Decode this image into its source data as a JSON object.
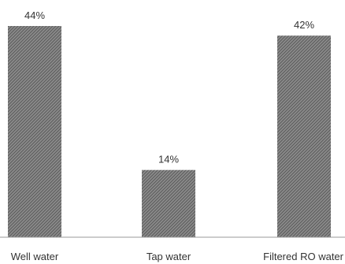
{
  "chart_data": {
    "type": "bar",
    "categories": [
      "Well water",
      "Tap water",
      "Filtered RO water"
    ],
    "values": [
      44,
      14,
      42
    ],
    "data_labels": [
      "44%",
      "14%",
      "42%"
    ],
    "title": "",
    "xlabel": "",
    "ylabel": "",
    "ylim": [
      0,
      45
    ],
    "grid": false,
    "legend": "none",
    "colors": {
      "bar_fill": "#8c8c8c",
      "bar_pattern": "#5a5a5a",
      "axis": "#9a9a9a",
      "text": "#333333"
    }
  }
}
